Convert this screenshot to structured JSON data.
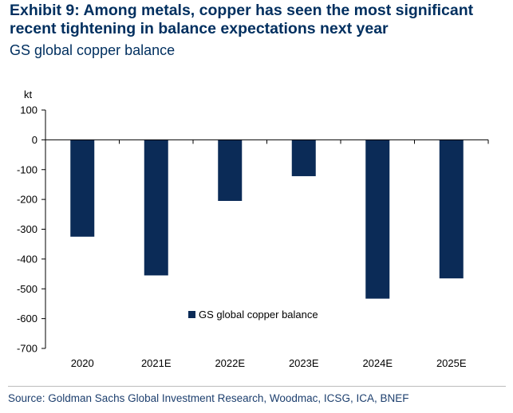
{
  "title": "Exhibit 9: Among metals, copper has seen the most significant recent tightening in balance expectations next year",
  "subtitle": "GS global copper balance",
  "source": "Source: Goldman Sachs Global Investment Research, Woodmac, ICSG, ICA, BNEF",
  "colors": {
    "bar": "#0b2b57",
    "title": "#002f5f",
    "axis": "#000000"
  },
  "chart_data": {
    "type": "bar",
    "categories": [
      "2020",
      "2021E",
      "2022E",
      "2023E",
      "2024E",
      "2025E"
    ],
    "series": [
      {
        "name": "GS global copper balance",
        "values": [
          -325,
          -455,
          -205,
          -122,
          -533,
          -465
        ]
      }
    ],
    "ylabel": "kt",
    "ylim": [
      -700,
      100
    ],
    "yticks": [
      100,
      0,
      -100,
      -200,
      -300,
      -400,
      -500,
      -600,
      -700
    ],
    "grid": false,
    "legend": "inside-bottom-center"
  }
}
